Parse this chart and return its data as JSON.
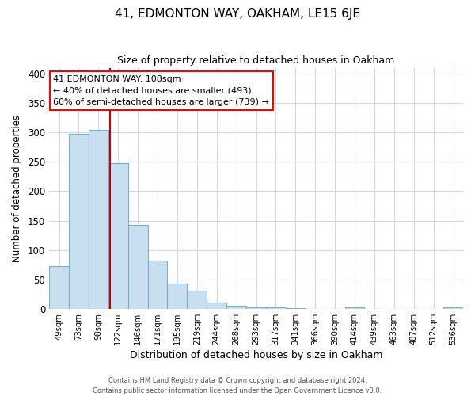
{
  "title": "41, EDMONTON WAY, OAKHAM, LE15 6JE",
  "subtitle": "Size of property relative to detached houses in Oakham",
  "xlabel": "Distribution of detached houses by size in Oakham",
  "ylabel": "Number of detached properties",
  "bar_labels": [
    "49sqm",
    "73sqm",
    "98sqm",
    "122sqm",
    "146sqm",
    "171sqm",
    "195sqm",
    "219sqm",
    "244sqm",
    "268sqm",
    "293sqm",
    "317sqm",
    "341sqm",
    "366sqm",
    "390sqm",
    "414sqm",
    "439sqm",
    "463sqm",
    "487sqm",
    "512sqm",
    "536sqm"
  ],
  "bar_heights": [
    73,
    297,
    304,
    248,
    143,
    82,
    43,
    31,
    10,
    5,
    2,
    2,
    1,
    0,
    0,
    3,
    0,
    0,
    0,
    0,
    2
  ],
  "bar_color": "#c8dff0",
  "bar_edge_color": "#7aafd4",
  "vline_color": "#cc0000",
  "ylim": [
    0,
    410
  ],
  "yticks": [
    0,
    50,
    100,
    150,
    200,
    250,
    300,
    350,
    400
  ],
  "annotation_title": "41 EDMONTON WAY: 108sqm",
  "annotation_line1": "← 40% of detached houses are smaller (493)",
  "annotation_line2": "60% of semi-detached houses are larger (739) →",
  "footer_line1": "Contains HM Land Registry data © Crown copyright and database right 2024.",
  "footer_line2": "Contains public sector information licensed under the Open Government Licence v3.0.",
  "background_color": "#ffffff",
  "grid_color": "#d0d8e8",
  "vline_bar_index": 2.57
}
